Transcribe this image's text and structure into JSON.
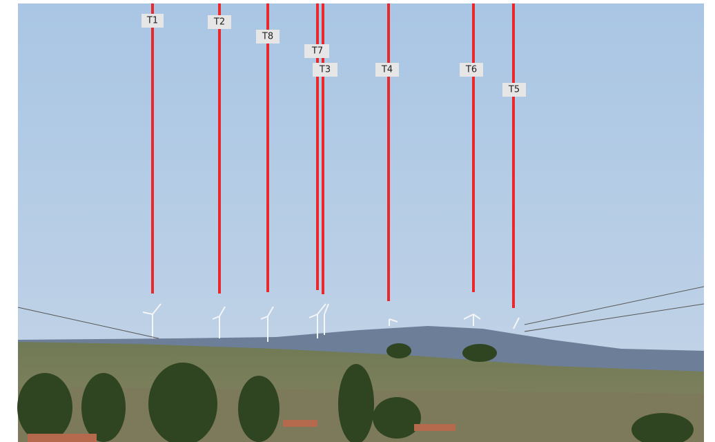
{
  "markers": [
    {
      "label": "T1"
    },
    {
      "label": "T2"
    },
    {
      "label": "T8"
    },
    {
      "label": "T7"
    },
    {
      "label": "T3"
    },
    {
      "label": "T4"
    },
    {
      "label": "T6"
    },
    {
      "label": "T5"
    }
  ]
}
